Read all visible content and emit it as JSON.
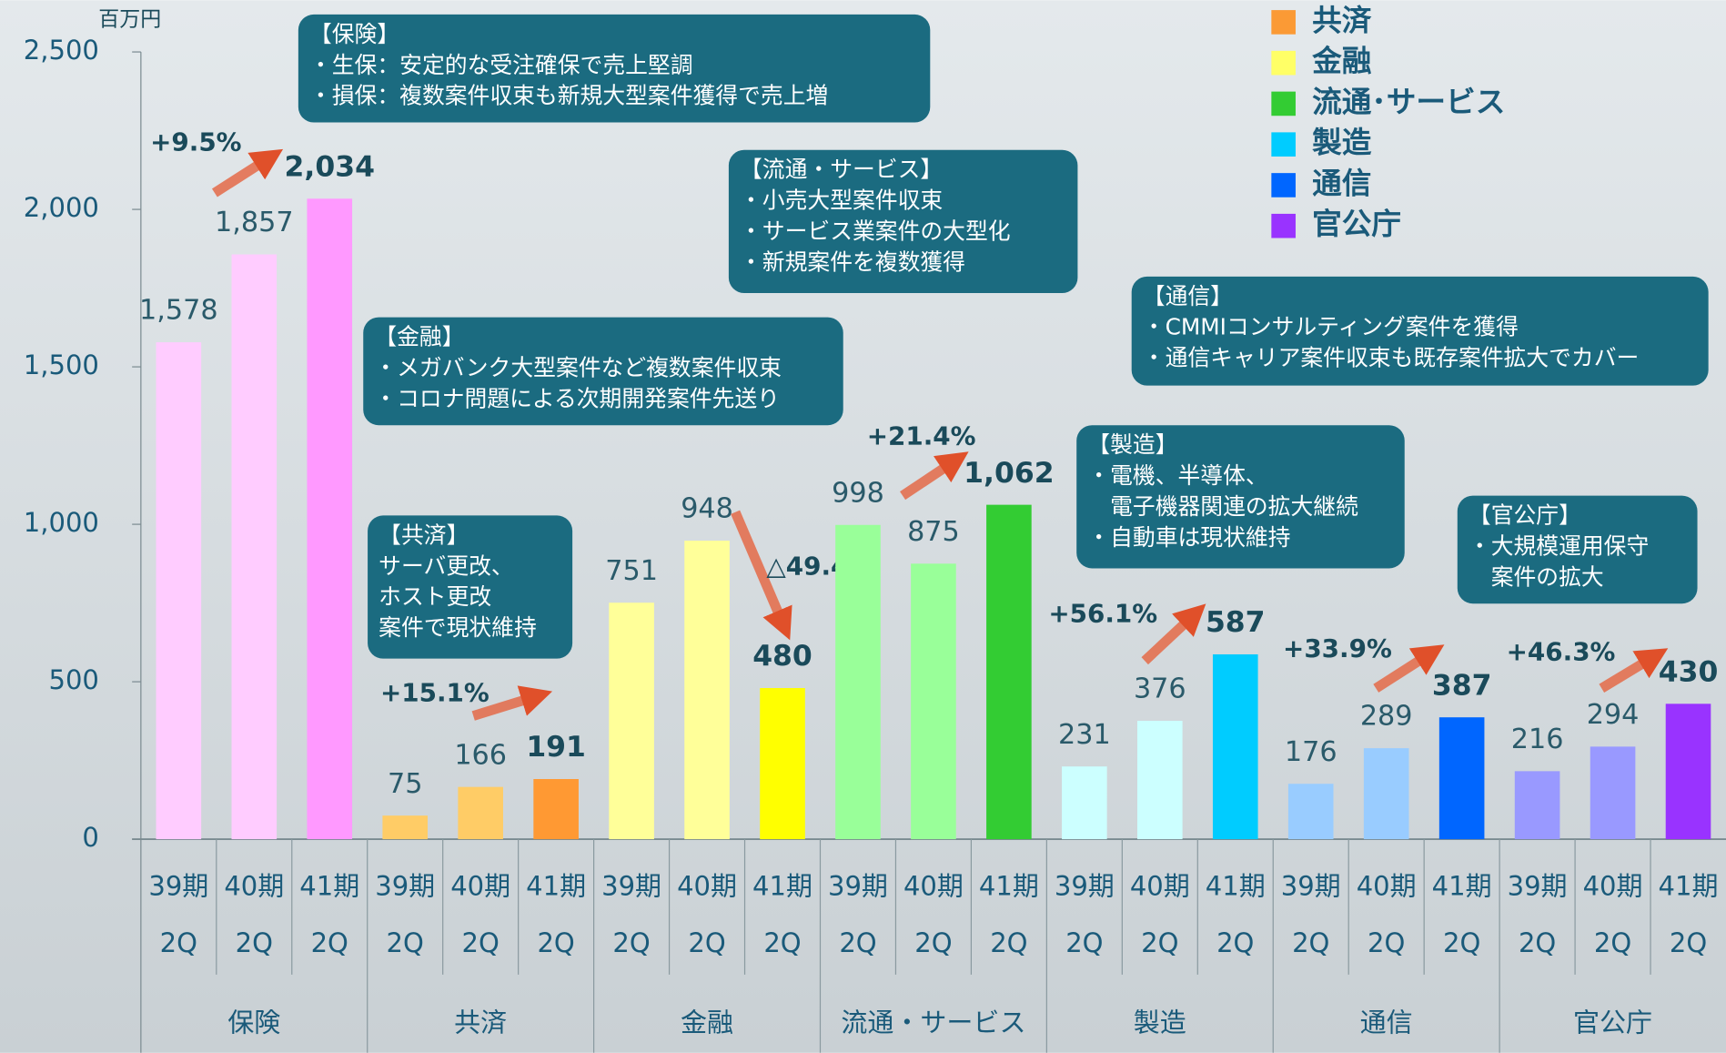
{
  "chart_data": {
    "type": "bar",
    "y_unit": "百万円",
    "ylim": [
      0,
      2500
    ],
    "yticks": [
      0,
      500,
      {
        "value": 1000,
        "label": "1,000"
      },
      {
        "value": 1500,
        "label": "1,500"
      },
      {
        "value": 2000,
        "label": "2,000"
      },
      {
        "value": 2500,
        "label": "2,500"
      }
    ],
    "periods": [
      [
        "39期",
        "2Q"
      ],
      [
        "40期",
        "2Q"
      ],
      [
        "41期",
        "2Q"
      ]
    ],
    "legend": [
      {
        "name": "共済",
        "color": "#fb9a35"
      },
      {
        "name": "金融",
        "color": "#ffff66"
      },
      {
        "name": "流通･サービス",
        "color": "#33cc33"
      },
      {
        "name": "製造",
        "color": "#00ccff"
      },
      {
        "name": "通信",
        "color": "#0066ff"
      },
      {
        "name": "官公庁",
        "color": "#9933ff"
      }
    ],
    "groups": [
      {
        "name": "保険",
        "values": [
          1578,
          1857,
          2034
        ],
        "value_labels": [
          "1,578",
          "1,857",
          "2,034"
        ],
        "colors": [
          "#ffccff",
          "#ffccff",
          "#ff99ff"
        ],
        "change": "+9.5%",
        "note": [
          "【保険】",
          "・生保：安定的な受注確保で売上堅調",
          "・損保：複数案件収束も新規大型案件獲得で売上増"
        ]
      },
      {
        "name": "共済",
        "values": [
          75,
          166,
          191
        ],
        "colors": [
          "#ffcc66",
          "#ffcc66",
          "#ff9933"
        ],
        "change": "+15.1%",
        "note": [
          "【共済】",
          "サーバ更改、",
          "ホスト更改",
          "案件で現状維持"
        ]
      },
      {
        "name": "金融",
        "values": [
          751,
          948,
          480
        ],
        "colors": [
          "#ffff99",
          "#ffff99",
          "#ffff00"
        ],
        "change": "△49.4%",
        "note": [
          "【金融】",
          "・メガバンク大型案件など複数案件収束",
          "・コロナ問題による次期開発案件先送り"
        ]
      },
      {
        "name": "流通・サービス",
        "values": [
          998,
          875,
          1062
        ],
        "value_labels": [
          "998",
          "875",
          "1,062"
        ],
        "colors": [
          "#99ff99",
          "#99ff99",
          "#33cc33"
        ],
        "change": "+21.4%",
        "note": [
          "【流通・サービス】",
          "・小売大型案件収束",
          "・サービス業案件の大型化",
          "・新規案件を複数獲得"
        ]
      },
      {
        "name": "製造",
        "values": [
          231,
          376,
          587
        ],
        "colors": [
          "#ccffff",
          "#ccffff",
          "#00ccff"
        ],
        "change": "+56.1%",
        "note": [
          "【製造】",
          "・電機、半導体、",
          "　電子機器関連の拡大継続",
          "・自動車は現状維持"
        ]
      },
      {
        "name": "通信",
        "values": [
          176,
          289,
          387
        ],
        "colors": [
          "#99ccff",
          "#99ccff",
          "#0066ff"
        ],
        "change": "+33.9%",
        "note": [
          "【通信】",
          "・CMMIコンサルティング案件を獲得",
          "・通信キャリア案件収束も既存案件拡大でカバー"
        ]
      },
      {
        "name": "官公庁",
        "values": [
          216,
          294,
          430
        ],
        "colors": [
          "#9999ff",
          "#9999ff",
          "#9933ff"
        ],
        "change": "+46.3%",
        "note": [
          "【官公庁】",
          "・大規模運用保守",
          "　案件の拡大"
        ]
      }
    ]
  }
}
